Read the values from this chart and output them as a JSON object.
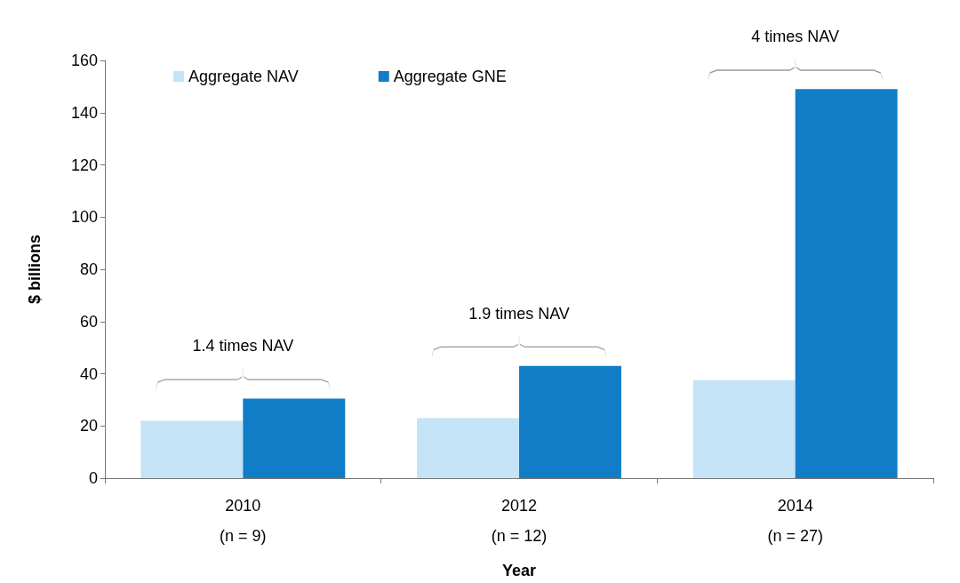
{
  "chart_data": {
    "type": "bar",
    "xlabel": "Year",
    "ylabel": "$ billions",
    "categories": [
      "2010\n(n = 9)",
      "2012\n(n = 12)",
      "2014\n(n = 27)"
    ],
    "series": [
      {
        "name": "Aggregate NAV",
        "color": "#c5e3f7",
        "values": [
          22,
          23,
          37.5
        ]
      },
      {
        "name": "Aggregate GNE",
        "color": "#127dc7",
        "values": [
          30.5,
          43,
          149
        ]
      }
    ],
    "ylim": [
      0,
      160
    ],
    "yticks": [
      0,
      20,
      40,
      60,
      80,
      100,
      120,
      140,
      160
    ],
    "grid": false,
    "legend": "top left",
    "annotations": [
      "1.4 times NAV",
      "1.9 times NAV",
      "4 times NAV"
    ]
  }
}
